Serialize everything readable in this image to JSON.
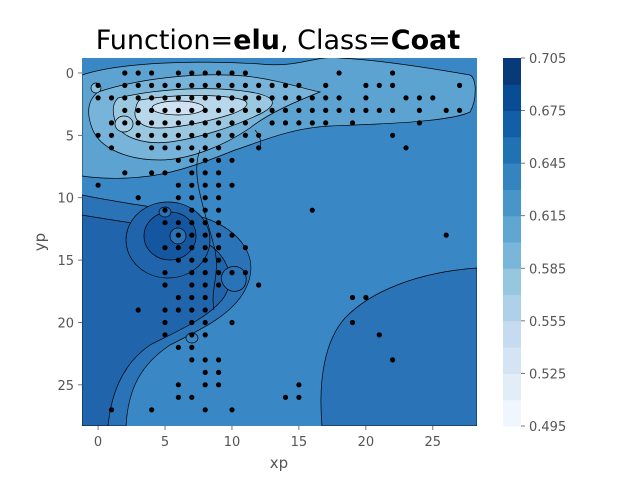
{
  "chart_data": {
    "type": "contour",
    "title": {
      "prefix": "Function=",
      "function": "elu",
      "sep": ", Class=",
      "class": "Coat"
    },
    "xlabel": "xp",
    "ylabel": "yp",
    "xlim": [
      -1.2,
      28.3
    ],
    "ylim": [
      28.3,
      -1.2
    ],
    "y_inverted": true,
    "x_ticks": [
      0,
      5,
      10,
      15,
      20,
      25
    ],
    "y_ticks": [
      0,
      5,
      10,
      15,
      20,
      25
    ],
    "colorbar": {
      "min": 0.495,
      "max": 0.705,
      "step": 0.015,
      "tick_labels": [
        "0.705",
        "0.675",
        "0.645",
        "0.615",
        "0.585",
        "0.555",
        "0.525",
        "0.495"
      ],
      "colormap": "Blues"
    },
    "background_level_color": "#3a87c5",
    "hotspots": [
      {
        "label": "low-activation streak (light)",
        "x": 5.5,
        "y": 2.5,
        "approx_value": 0.54
      },
      {
        "label": "low-activation pocket (light)",
        "x": 2,
        "y": 4,
        "approx_value": 0.57
      },
      {
        "label": "high-activation pocket (dark)",
        "x": 5.5,
        "y": 12.5,
        "approx_value": 0.675
      }
    ],
    "points": [
      [
        0,
        1
      ],
      [
        0,
        2
      ],
      [
        0,
        5
      ],
      [
        0,
        9
      ],
      [
        1,
        2
      ],
      [
        1,
        4
      ],
      [
        1,
        5
      ],
      [
        1,
        6
      ],
      [
        1,
        27
      ],
      [
        2,
        0
      ],
      [
        2,
        1
      ],
      [
        2,
        2
      ],
      [
        2,
        3
      ],
      [
        2,
        4
      ],
      [
        2,
        8
      ],
      [
        3,
        0
      ],
      [
        3,
        1
      ],
      [
        3,
        2
      ],
      [
        3,
        3
      ],
      [
        3,
        4
      ],
      [
        3,
        5
      ],
      [
        3,
        10
      ],
      [
        3,
        19
      ],
      [
        4,
        0
      ],
      [
        4,
        1
      ],
      [
        4,
        2
      ],
      [
        4,
        3
      ],
      [
        4,
        4
      ],
      [
        4,
        5
      ],
      [
        4,
        6
      ],
      [
        4,
        8
      ],
      [
        4,
        27
      ],
      [
        5,
        1
      ],
      [
        5,
        2
      ],
      [
        5,
        3
      ],
      [
        5,
        4
      ],
      [
        5,
        5
      ],
      [
        5,
        6
      ],
      [
        5,
        8
      ],
      [
        5,
        11
      ],
      [
        5,
        12
      ],
      [
        5,
        14
      ],
      [
        5,
        16
      ],
      [
        5,
        17
      ],
      [
        5,
        19
      ],
      [
        5,
        20
      ],
      [
        5,
        21
      ],
      [
        6,
        0
      ],
      [
        6,
        1
      ],
      [
        6,
        2
      ],
      [
        6,
        3
      ],
      [
        6,
        4
      ],
      [
        6,
        5
      ],
      [
        6,
        6
      ],
      [
        6,
        7
      ],
      [
        6,
        9
      ],
      [
        6,
        10
      ],
      [
        6,
        12
      ],
      [
        6,
        13
      ],
      [
        6,
        14
      ],
      [
        6,
        15
      ],
      [
        6,
        18
      ],
      [
        6,
        19
      ],
      [
        6,
        22
      ],
      [
        6,
        25
      ],
      [
        6,
        26
      ],
      [
        7,
        0
      ],
      [
        7,
        1
      ],
      [
        7,
        2
      ],
      [
        7,
        3
      ],
      [
        7,
        4
      ],
      [
        7,
        5
      ],
      [
        7,
        6
      ],
      [
        7,
        7
      ],
      [
        7,
        8
      ],
      [
        7,
        9
      ],
      [
        7,
        10
      ],
      [
        7,
        11
      ],
      [
        7,
        12
      ],
      [
        7,
        13
      ],
      [
        7,
        14
      ],
      [
        7,
        15
      ],
      [
        7,
        16
      ],
      [
        7,
        17
      ],
      [
        7,
        18
      ],
      [
        7,
        19
      ],
      [
        7,
        20
      ],
      [
        7,
        21
      ],
      [
        7,
        22
      ],
      [
        7,
        23
      ],
      [
        7,
        26
      ],
      [
        8,
        0
      ],
      [
        8,
        1
      ],
      [
        8,
        2
      ],
      [
        8,
        3
      ],
      [
        8,
        4
      ],
      [
        8,
        5
      ],
      [
        8,
        6
      ],
      [
        8,
        7
      ],
      [
        8,
        8
      ],
      [
        8,
        9
      ],
      [
        8,
        10
      ],
      [
        8,
        11
      ],
      [
        8,
        12
      ],
      [
        8,
        13
      ],
      [
        8,
        14
      ],
      [
        8,
        15
      ],
      [
        8,
        16
      ],
      [
        8,
        17
      ],
      [
        8,
        18
      ],
      [
        8,
        19
      ],
      [
        8,
        20
      ],
      [
        8,
        21
      ],
      [
        8,
        23
      ],
      [
        8,
        24
      ],
      [
        8,
        25
      ],
      [
        8,
        27
      ],
      [
        9,
        0
      ],
      [
        9,
        1
      ],
      [
        9,
        2
      ],
      [
        9,
        3
      ],
      [
        9,
        4
      ],
      [
        9,
        5
      ],
      [
        9,
        6
      ],
      [
        9,
        7
      ],
      [
        9,
        8
      ],
      [
        9,
        9
      ],
      [
        9,
        10
      ],
      [
        9,
        11
      ],
      [
        9,
        12
      ],
      [
        9,
        13
      ],
      [
        9,
        14
      ],
      [
        9,
        15
      ],
      [
        9,
        16
      ],
      [
        9,
        17
      ],
      [
        9,
        23
      ],
      [
        9,
        24
      ],
      [
        9,
        25
      ],
      [
        10,
        0
      ],
      [
        10,
        1
      ],
      [
        10,
        2
      ],
      [
        10,
        3
      ],
      [
        10,
        4
      ],
      [
        10,
        5
      ],
      [
        10,
        7
      ],
      [
        10,
        9
      ],
      [
        10,
        13
      ],
      [
        10,
        16
      ],
      [
        10,
        20
      ],
      [
        10,
        27
      ],
      [
        11,
        0
      ],
      [
        11,
        1
      ],
      [
        11,
        2
      ],
      [
        11,
        3
      ],
      [
        11,
        4
      ],
      [
        11,
        5
      ],
      [
        11,
        14
      ],
      [
        11,
        16
      ],
      [
        12,
        1
      ],
      [
        12,
        2
      ],
      [
        12,
        3
      ],
      [
        12,
        5
      ],
      [
        12,
        6
      ],
      [
        12,
        17
      ],
      [
        13,
        1
      ],
      [
        13,
        2
      ],
      [
        13,
        3
      ],
      [
        13,
        4
      ],
      [
        14,
        1
      ],
      [
        14,
        2
      ],
      [
        14,
        3
      ],
      [
        14,
        4
      ],
      [
        14,
        26
      ],
      [
        15,
        1
      ],
      [
        15,
        2
      ],
      [
        15,
        3
      ],
      [
        15,
        4
      ],
      [
        15,
        25
      ],
      [
        15,
        26
      ],
      [
        16,
        2
      ],
      [
        16,
        3
      ],
      [
        16,
        4
      ],
      [
        16,
        11
      ],
      [
        17,
        1
      ],
      [
        17,
        2
      ],
      [
        17,
        3
      ],
      [
        17,
        4
      ],
      [
        18,
        0
      ],
      [
        18,
        2
      ],
      [
        18,
        3
      ],
      [
        19,
        3
      ],
      [
        19,
        4
      ],
      [
        19,
        18
      ],
      [
        19,
        20
      ],
      [
        20,
        1
      ],
      [
        20,
        2
      ],
      [
        20,
        3
      ],
      [
        20,
        18
      ],
      [
        21,
        1
      ],
      [
        21,
        3
      ],
      [
        21,
        21
      ],
      [
        22,
        0
      ],
      [
        22,
        1
      ],
      [
        22,
        3
      ],
      [
        22,
        5
      ],
      [
        22,
        23
      ],
      [
        23,
        2
      ],
      [
        23,
        6
      ],
      [
        24,
        2
      ],
      [
        24,
        3
      ],
      [
        24,
        4
      ],
      [
        25,
        2
      ],
      [
        26,
        3
      ],
      [
        26,
        13
      ],
      [
        27,
        1
      ],
      [
        27,
        3
      ]
    ]
  }
}
